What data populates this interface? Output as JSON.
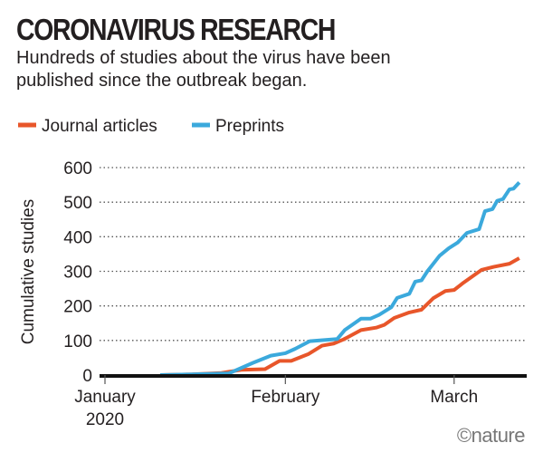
{
  "header": {
    "title": "CORONAVIRUS RESEARCH",
    "subtitle_line1": "Hundreds of studies about the virus have been",
    "subtitle_line2": "published since the outbreak began."
  },
  "credit": "©nature",
  "chart_data": {
    "type": "line",
    "title": "CORONAVIRUS RESEARCH",
    "xlabel": "",
    "ylabel": "Cumulative studies",
    "x_units": "days since 1 January 2020",
    "xlim": [
      0,
      72
    ],
    "ylim": [
      0,
      600
    ],
    "yticks": [
      0,
      100,
      200,
      300,
      400,
      500,
      600
    ],
    "xticks": [
      {
        "day": 0,
        "label": "January",
        "sublabel": "2020"
      },
      {
        "day": 31,
        "label": "February",
        "sublabel": ""
      },
      {
        "day": 60,
        "label": "March",
        "sublabel": ""
      }
    ],
    "grid": "horizontal dotted",
    "legend_position": "top-left",
    "series": [
      {
        "name": "Journal articles",
        "color": "#e8562a",
        "x": [
          9.5,
          15,
          20,
          23.4,
          27.5,
          30,
          32,
          35,
          37.3,
          39.3,
          41,
          44,
          46.6,
          48,
          49.7,
          52.3,
          54.4,
          56.4,
          58.5,
          60,
          61.6,
          64.7,
          66.8,
          69.5,
          71.2
        ],
        "y": [
          0,
          2,
          6,
          15,
          17,
          41,
          41,
          61,
          85,
          91,
          103,
          130,
          137,
          145,
          165,
          181,
          189,
          222,
          243,
          246,
          267,
          304,
          313,
          322,
          338
        ]
      },
      {
        "name": "Preprints",
        "color": "#3ba9dc",
        "x": [
          9.5,
          15,
          21.3,
          25.4,
          28.5,
          31,
          32.7,
          35.2,
          39.9,
          41.2,
          44,
          45.6,
          47.1,
          49.2,
          50.2,
          52.3,
          53.3,
          54.4,
          55.4,
          57.5,
          59.1,
          60.6,
          62.2,
          64.3,
          65.3,
          66.6,
          67.4,
          68.4,
          69.5,
          70.2,
          71.2
        ],
        "y": [
          0,
          2,
          5,
          35,
          56,
          63,
          76,
          98,
          104,
          130,
          163,
          163,
          174,
          196,
          223,
          235,
          270,
          274,
          300,
          345,
          367,
          383,
          411,
          422,
          474,
          480,
          504,
          509,
          537,
          539,
          557
        ]
      }
    ]
  }
}
